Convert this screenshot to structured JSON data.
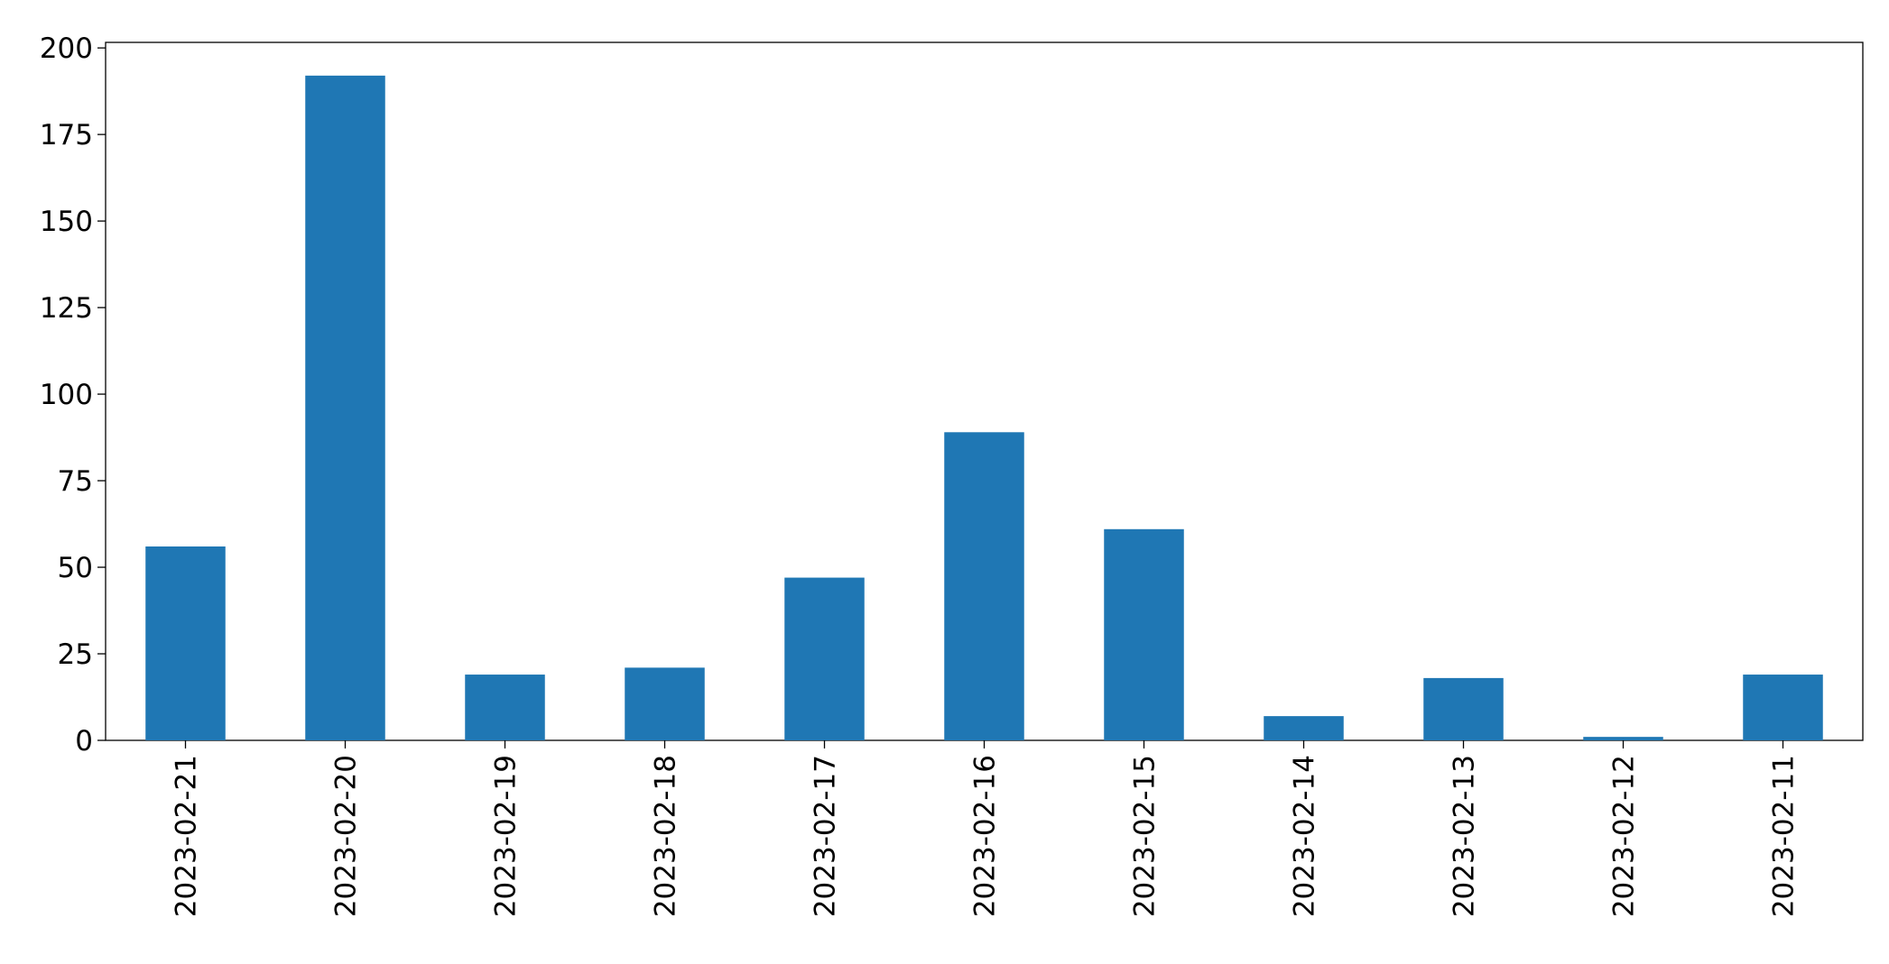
{
  "chart_data": {
    "type": "bar",
    "categories": [
      "2023-02-21",
      "2023-02-20",
      "2023-02-19",
      "2023-02-18",
      "2023-02-17",
      "2023-02-16",
      "2023-02-15",
      "2023-02-14",
      "2023-02-13",
      "2023-02-12",
      "2023-02-11"
    ],
    "values": [
      56,
      192,
      19,
      21,
      47,
      89,
      61,
      7,
      18,
      1,
      19
    ],
    "color": "#1f77b4",
    "ylim": [
      0,
      201.6
    ],
    "yticks": [
      0,
      25,
      50,
      75,
      100,
      125,
      150,
      175,
      200
    ],
    "grid": false
  }
}
